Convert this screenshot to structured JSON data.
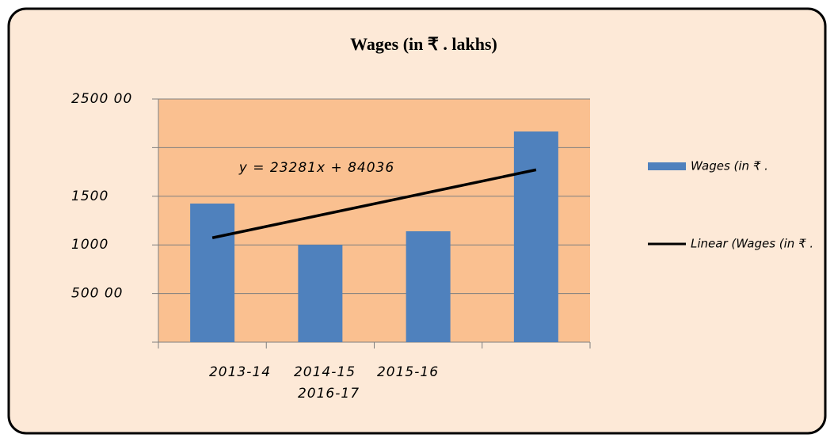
{
  "chart_data": {
    "type": "bar",
    "title": "Wages (in ₹ . lakhs)",
    "categories": [
      "2013-14",
      "2014-15",
      "2015-16",
      "2016-17"
    ],
    "series": [
      {
        "name": "Wages (in ₹ .",
        "color": "#4f81bd",
        "values": [
          142500,
          100000,
          114000,
          216600
        ]
      },
      {
        "name": "Linear (Wages (in ₹ .",
        "color": "#000000",
        "type": "line",
        "values": [
          107300,
          130600,
          153900,
          177200
        ]
      }
    ],
    "annotation": "y = 23281x + 84036",
    "ylim": [
      0,
      250000
    ],
    "yticks": [
      {
        "value": 0,
        "label": null
      },
      {
        "value": 50000,
        "label": "500 00"
      },
      {
        "value": 100000,
        "label": "1000"
      },
      {
        "value": 150000,
        "label": "1500"
      },
      {
        "value": 200000,
        "label": null
      },
      {
        "value": 250000,
        "label": "2500 00"
      }
    ],
    "grid": true,
    "legend": "right"
  }
}
